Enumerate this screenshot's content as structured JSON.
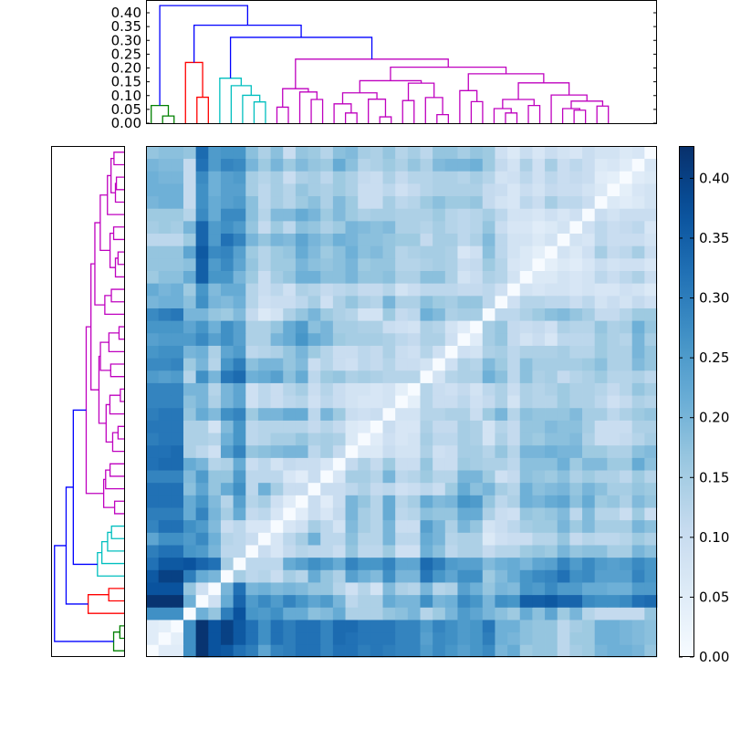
{
  "chart_data": {
    "type": "heatmap",
    "title": "",
    "n_leaves": 41,
    "matrix_storage": "symmetric distance matrix, upper triangle rows (row i lists columns i+1..40), diagonal = 0",
    "upper": [
      [
        0.05,
        0.05,
        0.27,
        0.42,
        0.37,
        0.36,
        0.32,
        0.3,
        0.23,
        0.29,
        0.3,
        0.32,
        0.32,
        0.29,
        0.32,
        0.32,
        0.3,
        0.31,
        0.3,
        0.29,
        0.29,
        0.25,
        0.28,
        0.26,
        0.24,
        0.26,
        0.28,
        0.2,
        0.22,
        0.16,
        0.17,
        0.17,
        0.12,
        0.15,
        0.16,
        0.2,
        0.21,
        0.21,
        0.2,
        0.17
      ],
      [
        0.04,
        0.27,
        0.42,
        0.37,
        0.4,
        0.36,
        0.32,
        0.27,
        0.32,
        0.3,
        0.32,
        0.32,
        0.29,
        0.33,
        0.32,
        0.31,
        0.31,
        0.31,
        0.29,
        0.29,
        0.24,
        0.28,
        0.27,
        0.25,
        0.26,
        0.3,
        0.21,
        0.2,
        0.18,
        0.17,
        0.17,
        0.12,
        0.16,
        0.16,
        0.21,
        0.21,
        0.2,
        0.19,
        0.18
      ],
      [
        0.27,
        0.42,
        0.37,
        0.4,
        0.36,
        0.32,
        0.27,
        0.32,
        0.3,
        0.32,
        0.32,
        0.29,
        0.33,
        0.33,
        0.31,
        0.31,
        0.31,
        0.29,
        0.29,
        0.25,
        0.29,
        0.27,
        0.25,
        0.26,
        0.31,
        0.21,
        0.21,
        0.18,
        0.17,
        0.17,
        0.12,
        0.15,
        0.16,
        0.21,
        0.21,
        0.2,
        0.19,
        0.18
      ],
      [
        0.21,
        0.17,
        0.3,
        0.37,
        0.26,
        0.25,
        0.27,
        0.22,
        0.22,
        0.18,
        0.19,
        0.22,
        0.14,
        0.14,
        0.14,
        0.17,
        0.18,
        0.2,
        0.13,
        0.16,
        0.2,
        0.25,
        0.23,
        0.2,
        0.18,
        0.16,
        0.22,
        0.18,
        0.23,
        0.16,
        0.2,
        0.13,
        0.11,
        0.11,
        0.11,
        0.11,
        0.17
      ],
      [
        0.09,
        0.22,
        0.34,
        0.25,
        0.28,
        0.25,
        0.29,
        0.26,
        0.23,
        0.25,
        0.2,
        0.12,
        0.14,
        0.14,
        0.22,
        0.2,
        0.2,
        0.27,
        0.2,
        0.21,
        0.28,
        0.26,
        0.2,
        0.27,
        0.26,
        0.35,
        0.35,
        0.36,
        0.34,
        0.34,
        0.28,
        0.27,
        0.27,
        0.28,
        0.32,
        0.33
      ],
      [
        0.2,
        0.32,
        0.2,
        0.21,
        0.19,
        0.2,
        0.19,
        0.17,
        0.17,
        0.13,
        0.09,
        0.13,
        0.08,
        0.19,
        0.14,
        0.13,
        0.2,
        0.13,
        0.14,
        0.24,
        0.21,
        0.17,
        0.2,
        0.19,
        0.26,
        0.25,
        0.28,
        0.25,
        0.25,
        0.22,
        0.22,
        0.21,
        0.21,
        0.25,
        0.25
      ],
      [
        0.15,
        0.12,
        0.13,
        0.1,
        0.15,
        0.13,
        0.22,
        0.17,
        0.14,
        0.24,
        0.21,
        0.19,
        0.27,
        0.2,
        0.2,
        0.31,
        0.26,
        0.23,
        0.27,
        0.27,
        0.16,
        0.19,
        0.22,
        0.26,
        0.28,
        0.29,
        0.32,
        0.27,
        0.28,
        0.24,
        0.24,
        0.24,
        0.29,
        0.26
      ],
      [
        0.12,
        0.12,
        0.12,
        0.22,
        0.24,
        0.27,
        0.25,
        0.22,
        0.29,
        0.26,
        0.26,
        0.29,
        0.23,
        0.23,
        0.33,
        0.3,
        0.25,
        0.24,
        0.24,
        0.19,
        0.21,
        0.22,
        0.2,
        0.23,
        0.24,
        0.29,
        0.25,
        0.28,
        0.25,
        0.24,
        0.25,
        0.28,
        0.26
      ],
      [
        0.1,
        0.07,
        0.11,
        0.13,
        0.12,
        0.12,
        0.1,
        0.17,
        0.12,
        0.12,
        0.16,
        0.09,
        0.09,
        0.21,
        0.18,
        0.12,
        0.14,
        0.14,
        0.11,
        0.13,
        0.13,
        0.16,
        0.17,
        0.16,
        0.2,
        0.17,
        0.18,
        0.18,
        0.15,
        0.15,
        0.2,
        0.18
      ],
      [
        0.07,
        0.12,
        0.15,
        0.21,
        0.12,
        0.12,
        0.18,
        0.13,
        0.13,
        0.2,
        0.12,
        0.12,
        0.22,
        0.2,
        0.13,
        0.14,
        0.14,
        0.06,
        0.09,
        0.1,
        0.1,
        0.13,
        0.13,
        0.17,
        0.11,
        0.13,
        0.12,
        0.12,
        0.13,
        0.16,
        0.14
      ],
      [
        0.07,
        0.09,
        0.15,
        0.12,
        0.08,
        0.19,
        0.15,
        0.13,
        0.2,
        0.1,
        0.1,
        0.24,
        0.2,
        0.14,
        0.2,
        0.17,
        0.08,
        0.1,
        0.12,
        0.15,
        0.16,
        0.16,
        0.2,
        0.16,
        0.19,
        0.15,
        0.15,
        0.15,
        0.2,
        0.18
      ],
      [
        0.05,
        0.1,
        0.07,
        0.11,
        0.2,
        0.15,
        0.13,
        0.22,
        0.12,
        0.13,
        0.18,
        0.17,
        0.17,
        0.22,
        0.22,
        0.14,
        0.1,
        0.09,
        0.17,
        0.16,
        0.17,
        0.19,
        0.12,
        0.19,
        0.13,
        0.13,
        0.1,
        0.16,
        0.1
      ],
      [
        0.1,
        0.05,
        0.1,
        0.2,
        0.17,
        0.13,
        0.22,
        0.13,
        0.15,
        0.22,
        0.19,
        0.2,
        0.26,
        0.25,
        0.17,
        0.12,
        0.14,
        0.21,
        0.2,
        0.22,
        0.23,
        0.18,
        0.22,
        0.16,
        0.17,
        0.14,
        0.19,
        0.17
      ],
      [
        0.1,
        0.1,
        0.12,
        0.14,
        0.11,
        0.12,
        0.09,
        0.1,
        0.12,
        0.1,
        0.16,
        0.22,
        0.18,
        0.2,
        0.15,
        0.13,
        0.21,
        0.18,
        0.19,
        0.2,
        0.17,
        0.2,
        0.18,
        0.15,
        0.15,
        0.17,
        0.16
      ],
      [
        0.07,
        0.15,
        0.15,
        0.13,
        0.2,
        0.12,
        0.13,
        0.16,
        0.13,
        0.13,
        0.2,
        0.2,
        0.16,
        0.09,
        0.11,
        0.18,
        0.17,
        0.16,
        0.18,
        0.14,
        0.16,
        0.14,
        0.14,
        0.12,
        0.16,
        0.13
      ],
      [
        0.11,
        0.14,
        0.11,
        0.16,
        0.1,
        0.1,
        0.17,
        0.1,
        0.1,
        0.16,
        0.15,
        0.14,
        0.14,
        0.12,
        0.18,
        0.18,
        0.18,
        0.21,
        0.16,
        0.19,
        0.19,
        0.16,
        0.16,
        0.22,
        0.18
      ],
      [
        0.06,
        0.06,
        0.1,
        0.08,
        0.08,
        0.14,
        0.09,
        0.1,
        0.15,
        0.15,
        0.13,
        0.17,
        0.13,
        0.2,
        0.2,
        0.21,
        0.2,
        0.2,
        0.16,
        0.16,
        0.14,
        0.14,
        0.18,
        0.19
      ],
      [
        0.05,
        0.09,
        0.07,
        0.08,
        0.15,
        0.12,
        0.12,
        0.15,
        0.14,
        0.08,
        0.14,
        0.11,
        0.17,
        0.16,
        0.18,
        0.18,
        0.19,
        0.14,
        0.1,
        0.1,
        0.11,
        0.13,
        0.15
      ],
      [
        0.1,
        0.07,
        0.07,
        0.14,
        0.11,
        0.11,
        0.15,
        0.14,
        0.08,
        0.13,
        0.11,
        0.17,
        0.17,
        0.19,
        0.18,
        0.18,
        0.15,
        0.1,
        0.1,
        0.1,
        0.14,
        0.14
      ],
      [
        0.08,
        0.08,
        0.13,
        0.13,
        0.14,
        0.14,
        0.1,
        0.16,
        0.2,
        0.13,
        0.18,
        0.17,
        0.17,
        0.17,
        0.19,
        0.15,
        0.15,
        0.12,
        0.14,
        0.16,
        0.17
      ],
      [
        0.04,
        0.13,
        0.1,
        0.1,
        0.12,
        0.09,
        0.11,
        0.14,
        0.08,
        0.14,
        0.13,
        0.13,
        0.16,
        0.14,
        0.14,
        0.12,
        0.09,
        0.11,
        0.14,
        0.13
      ],
      [
        0.13,
        0.1,
        0.09,
        0.11,
        0.08,
        0.12,
        0.14,
        0.1,
        0.14,
        0.13,
        0.14,
        0.16,
        0.14,
        0.14,
        0.13,
        0.11,
        0.13,
        0.17,
        0.15
      ],
      [
        0.08,
        0.13,
        0.14,
        0.14,
        0.21,
        0.18,
        0.12,
        0.18,
        0.14,
        0.15,
        0.11,
        0.13,
        0.14,
        0.16,
        0.13,
        0.13,
        0.14,
        0.12
      ],
      [
        0.09,
        0.14,
        0.13,
        0.19,
        0.16,
        0.12,
        0.18,
        0.15,
        0.15,
        0.15,
        0.15,
        0.16,
        0.18,
        0.14,
        0.14,
        0.19,
        0.17
      ],
      [
        0.09,
        0.08,
        0.14,
        0.15,
        0.12,
        0.14,
        0.14,
        0.14,
        0.15,
        0.13,
        0.13,
        0.16,
        0.14,
        0.14,
        0.2,
        0.17
      ],
      [
        0.05,
        0.15,
        0.17,
        0.11,
        0.08,
        0.1,
        0.07,
        0.12,
        0.12,
        0.12,
        0.16,
        0.14,
        0.13,
        0.2,
        0.15
      ],
      [
        0.15,
        0.17,
        0.11,
        0.1,
        0.11,
        0.09,
        0.14,
        0.13,
        0.13,
        0.17,
        0.14,
        0.15,
        0.21,
        0.17
      ],
      [
        0.12,
        0.12,
        0.14,
        0.16,
        0.18,
        0.19,
        0.17,
        0.15,
        0.11,
        0.11,
        0.13,
        0.16,
        0.16
      ],
      [
        0.09,
        0.13,
        0.13,
        0.12,
        0.12,
        0.1,
        0.12,
        0.08,
        0.1,
        0.08,
        0.11,
        0.09
      ],
      [
        0.08,
        0.07,
        0.08,
        0.08,
        0.07,
        0.08,
        0.07,
        0.07,
        0.09,
        0.08,
        0.06
      ],
      [
        0.06,
        0.06,
        0.08,
        0.07,
        0.08,
        0.12,
        0.1,
        0.12,
        0.14,
        0.1
      ],
      [
        0.04,
        0.06,
        0.05,
        0.07,
        0.1,
        0.08,
        0.09,
        0.09,
        0.07
      ],
      [
        0.08,
        0.06,
        0.09,
        0.15,
        0.11,
        0.12,
        0.15,
        0.1
      ],
      [
        0.08,
        0.07,
        0.12,
        0.1,
        0.1,
        0.1,
        0.08
      ],
      [
        0.09,
        0.12,
        0.1,
        0.11,
        0.12,
        0.07
      ],
      [
        0.1,
        0.08,
        0.1,
        0.1,
        0.1
      ],
      [
        0.06,
        0.05,
        0.06,
        0.08
      ],
      [
        0.04,
        0.07,
        0.08
      ],
      [
        0.05,
        0.06
      ],
      [
        0.07
      ]
    ],
    "colormap": "Blues",
    "colormap_stops": [
      "#f7fbff",
      "#deebf7",
      "#c6dbef",
      "#9ecae1",
      "#6baed6",
      "#4292c6",
      "#2171b5",
      "#08519c",
      "#08306b"
    ],
    "vmin": 0.0,
    "vmax": 0.427,
    "colorbar": {
      "ticks": [
        0.0,
        0.05,
        0.1,
        0.15,
        0.2,
        0.25,
        0.3,
        0.35,
        0.4
      ],
      "tick_labels": [
        "0.00",
        "0.05",
        "0.10",
        "0.15",
        "0.20",
        "0.25",
        "0.30",
        "0.35",
        "0.40"
      ]
    },
    "dendrogram": {
      "height_range": [
        0.0,
        0.445
      ],
      "ticks": [
        0.0,
        0.05,
        0.1,
        0.15,
        0.2,
        0.25,
        0.3,
        0.35,
        0.4
      ],
      "tick_labels": [
        "0.00",
        "0.05",
        "0.10",
        "0.15",
        "0.20",
        "0.25",
        "0.30",
        "0.35",
        "0.40"
      ],
      "cluster_colors": {
        "g": "#008000",
        "r": "#ff0000",
        "c": "#00bfbf",
        "m": "#bf00bf",
        "b": "#0000ff"
      },
      "tree": [
        [
          0,
          [
            1,
            2,
            0.026,
            "g"
          ],
          0.064,
          "g"
        ],
        [
          [
            3,
            [
              4,
              5,
              0.094,
              "r"
            ],
            0.22,
            "r"
          ],
          [
            [
              6,
              [
                7,
                [
                  8,
                  [
                    9,
                    10,
                    0.077,
                    "c"
                  ],
                  0.101,
                  "c"
                ],
                0.136,
                "c"
              ],
              0.163,
              "c"
            ],
            [
              [
                [
                  11,
                  12,
                  0.058,
                  "m"
                ],
                [
                  13,
                  [
                    14,
                    15,
                    0.086,
                    "m"
                  ],
                  0.113,
                  "m"
                ],
                0.125,
                "m"
              ],
              [
                [
                  [
                    [
                      16,
                      [
                        17,
                        18,
                        0.037,
                        "m"
                      ],
                      0.07,
                      "m"
                    ],
                    [
                      19,
                      [
                        20,
                        21,
                        0.023,
                        "m"
                      ],
                      0.087,
                      "m"
                    ],
                    0.11,
                    "m"
                  ],
                  [
                    [
                      22,
                      23,
                      0.082,
                      "m"
                    ],
                    [
                      24,
                      [
                        25,
                        26,
                        0.031,
                        "m"
                      ],
                      0.093,
                      "m"
                    ],
                    0.145,
                    "m"
                  ],
                  0.154,
                  "m"
                ],
                [
                  [
                    27,
                    [
                      28,
                      29,
                      0.078,
                      "m"
                    ],
                    0.118,
                    "m"
                  ],
                  [
                    [
                      [
                        30,
                        [
                          31,
                          32,
                          0.037,
                          "m"
                        ],
                        0.053,
                        "m"
                      ],
                      [
                        33,
                        34,
                        0.064,
                        "m"
                      ],
                      0.086,
                      "m"
                    ],
                    [
                      35,
                      [
                        [
                          36,
                          [
                            37,
                            38,
                            0.047,
                            "m"
                          ],
                          0.053,
                          "m"
                        ],
                        [
                          39,
                          40,
                          0.062,
                          "m"
                        ],
                        0.08,
                        "m"
                      ],
                      0.102,
                      "m"
                    ],
                    0.146,
                    "m"
                  ],
                  0.179,
                  "m"
                ],
                0.203,
                "m"
              ],
              0.232,
              "m"
            ],
            0.311,
            "b"
          ],
          0.355,
          "b"
        ],
        0.426,
        "b"
      ]
    }
  }
}
